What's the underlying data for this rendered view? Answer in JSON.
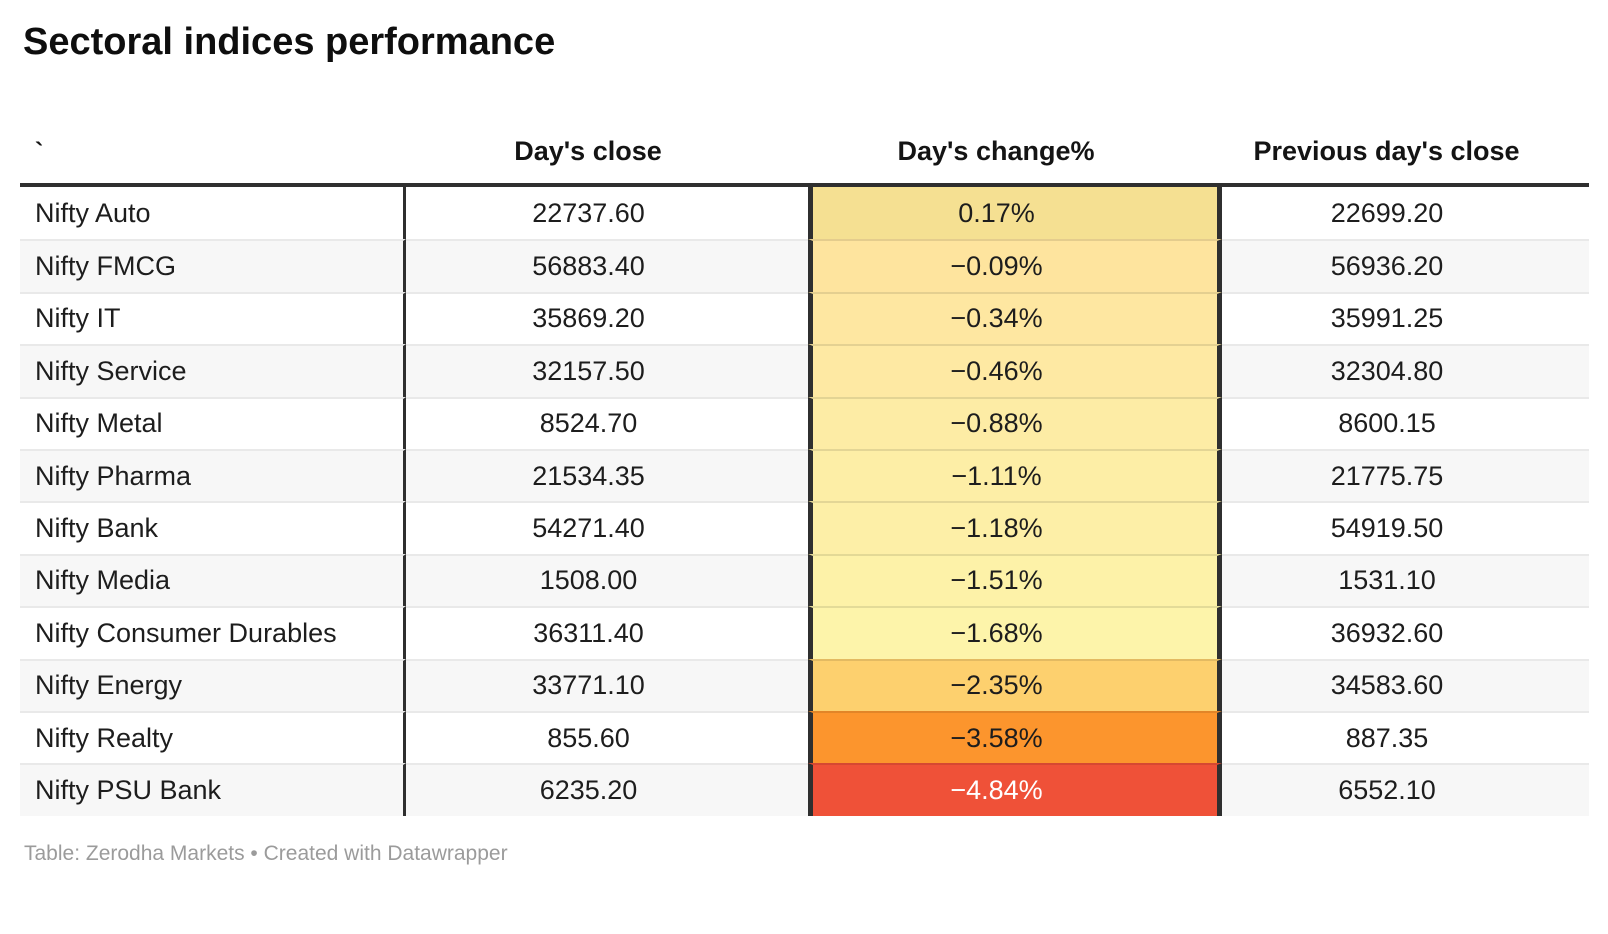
{
  "title": "Sectoral indices performance",
  "footer": "Table: Zerodha Markets • Created with Datawrapper",
  "columns": [
    "`",
    "Day's close",
    "Day's change%",
    "Previous day's close"
  ],
  "colors": {
    "border_dark": "#2f2f2f",
    "row_stripe": "#f7f7f7",
    "row_separator": "#e9e9e9",
    "footer_text": "#9b9b9b",
    "negative_extreme": "#ef5138",
    "negative_strong": "#fc952d",
    "negative_mild": "#fdd06e",
    "positive_mild": "#f5e092"
  },
  "rows": [
    {
      "name": "Nifty Auto",
      "close": "22737.60",
      "change": "0.17%",
      "prev": "22699.20",
      "change_bg": "#f5e092",
      "change_fg": "#1d1d1d"
    },
    {
      "name": "Nifty FMCG",
      "close": "56883.40",
      "change": "−0.09%",
      "prev": "56936.20",
      "change_bg": "#fee49e",
      "change_fg": "#1d1d1d"
    },
    {
      "name": "Nifty IT",
      "close": "35869.20",
      "change": "−0.34%",
      "prev": "35991.25",
      "change_bg": "#fee7a1",
      "change_fg": "#1d1d1d"
    },
    {
      "name": "Nifty Service",
      "close": "32157.50",
      "change": "−0.46%",
      "prev": "32304.80",
      "change_bg": "#fee9a3",
      "change_fg": "#1d1d1d"
    },
    {
      "name": "Nifty Metal",
      "close": "8524.70",
      "change": "−0.88%",
      "prev": "8600.15",
      "change_bg": "#fdeca5",
      "change_fg": "#1d1d1d"
    },
    {
      "name": "Nifty Pharma",
      "close": "21534.35",
      "change": "−1.11%",
      "prev": "21775.75",
      "change_bg": "#fdeea6",
      "change_fg": "#1d1d1d"
    },
    {
      "name": "Nifty Bank",
      "close": "54271.40",
      "change": "−1.18%",
      "prev": "54919.50",
      "change_bg": "#fdefa7",
      "change_fg": "#1d1d1d"
    },
    {
      "name": "Nifty Media",
      "close": "1508.00",
      "change": "−1.51%",
      "prev": "1531.10",
      "change_bg": "#fdf2a8",
      "change_fg": "#1d1d1d"
    },
    {
      "name": "Nifty Consumer Durables",
      "close": "36311.40",
      "change": "−1.68%",
      "prev": "36932.60",
      "change_bg": "#fdf4aa",
      "change_fg": "#1d1d1d"
    },
    {
      "name": "Nifty Energy",
      "close": "33771.10",
      "change": "−2.35%",
      "prev": "34583.60",
      "change_bg": "#fdd06e",
      "change_fg": "#1d1d1d"
    },
    {
      "name": "Nifty Realty",
      "close": "855.60",
      "change": "−3.58%",
      "prev": "887.35",
      "change_bg": "#fc952d",
      "change_fg": "#1d1d1d"
    },
    {
      "name": "Nifty PSU Bank",
      "close": "6235.20",
      "change": "−4.84%",
      "prev": "6552.10",
      "change_bg": "#ef5138",
      "change_fg": "#ffffff"
    }
  ],
  "chart_data": {
    "type": "table",
    "title": "Sectoral indices performance",
    "columns": [
      "`",
      "Day's close",
      "Day's change%",
      "Previous day's close"
    ],
    "heatmap_column": "Day's change%",
    "rows": [
      [
        "Nifty Auto",
        22737.6,
        0.17,
        22699.2
      ],
      [
        "Nifty FMCG",
        56883.4,
        -0.09,
        56936.2
      ],
      [
        "Nifty IT",
        35869.2,
        -0.34,
        35991.25
      ],
      [
        "Nifty Service",
        32157.5,
        -0.46,
        32304.8
      ],
      [
        "Nifty Metal",
        8524.7,
        -0.88,
        8600.15
      ],
      [
        "Nifty Pharma",
        21534.35,
        -1.11,
        21775.75
      ],
      [
        "Nifty Bank",
        54271.4,
        -1.18,
        54919.5
      ],
      [
        "Nifty Media",
        1508.0,
        -1.51,
        1531.1
      ],
      [
        "Nifty Consumer Durables",
        36311.4,
        -1.68,
        36932.6
      ],
      [
        "Nifty Energy",
        33771.1,
        -2.35,
        34583.6
      ],
      [
        "Nifty Realty",
        855.6,
        -3.58,
        887.35
      ],
      [
        "Nifty PSU Bank",
        6235.2,
        -4.84,
        6552.1
      ]
    ],
    "source": "Table: Zerodha Markets • Created with Datawrapper"
  }
}
